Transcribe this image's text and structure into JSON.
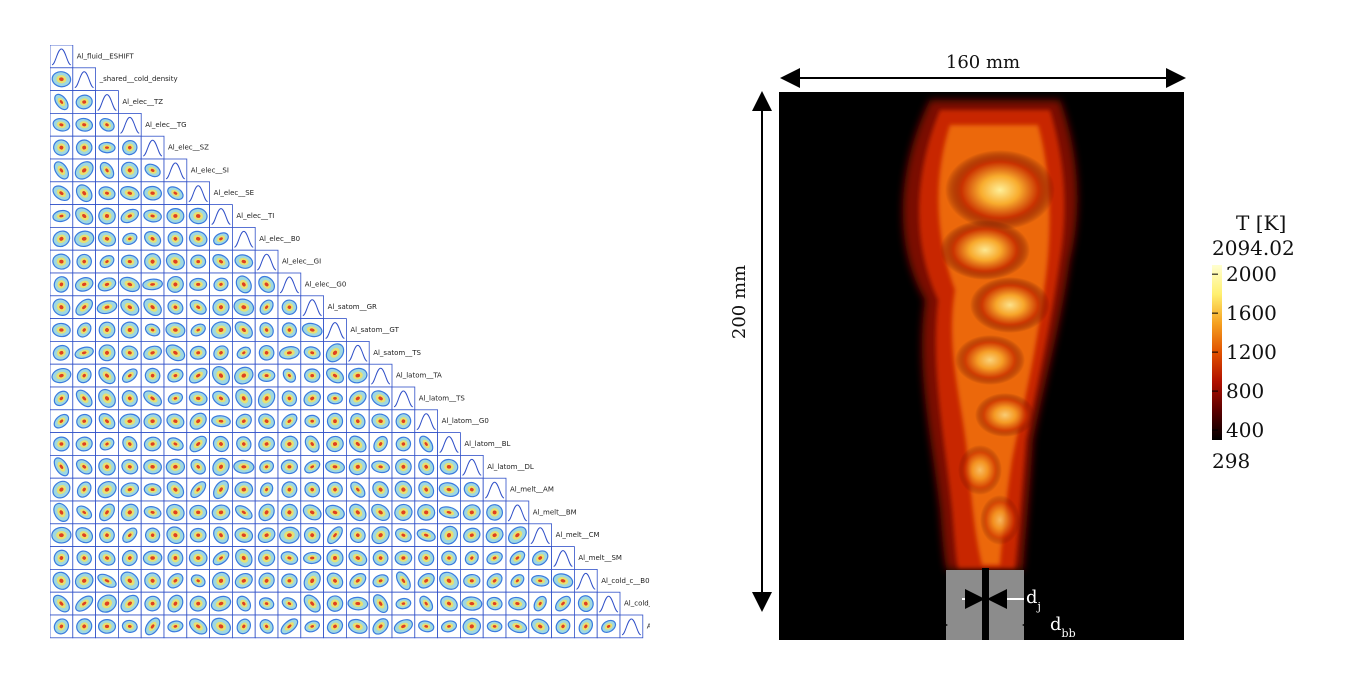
{
  "corner_plot": {
    "parameters": [
      "Al_fluid__ESHIFT",
      "_shared__cold_density",
      "Al_elec__TZ",
      "Al_elec__TG",
      "Al_elec__SZ",
      "Al_elec__SI",
      "Al_elec__SE",
      "Al_elec__TI",
      "Al_elec__B0",
      "Al_elec__GI",
      "Al_elec__G0",
      "Al_satom__GR",
      "Al_satom__GT",
      "Al_satom__TS",
      "Al_latom__TA",
      "Al_latom__TS",
      "Al_latom__G0",
      "Al_latom__BL",
      "Al_latom__DL",
      "Al_melt__AM",
      "Al_melt__BM",
      "Al_melt__CM",
      "Al_melt__SM",
      "Al_cold_c__B0",
      "Al_cold_c__BPD",
      "Al_cold_e__EB"
    ],
    "colors": {
      "frame": "#3050c8",
      "outer": "#3a7be0",
      "mid": "#9fd8e0",
      "inner": "#e8e070",
      "core": "#e04020"
    }
  },
  "flame": {
    "width_label": "160 mm",
    "height_label": "200 mm",
    "dj_label": "d",
    "dj_sub": "j",
    "dbb_label": "d",
    "dbb_sub": "bb",
    "colorbar": {
      "title": "T [K]",
      "max_label": "2094.02",
      "ticks": [
        "2000",
        "1600",
        "1200",
        "800",
        "400"
      ],
      "min_label": "298",
      "tick_values": [
        2000,
        1600,
        1200,
        800,
        400
      ],
      "range": [
        298,
        2094.02
      ],
      "colors": [
        "#000000",
        "#5a0000",
        "#b01000",
        "#e05000",
        "#f5a020",
        "#fff070",
        "#ffffd0"
      ]
    }
  }
}
